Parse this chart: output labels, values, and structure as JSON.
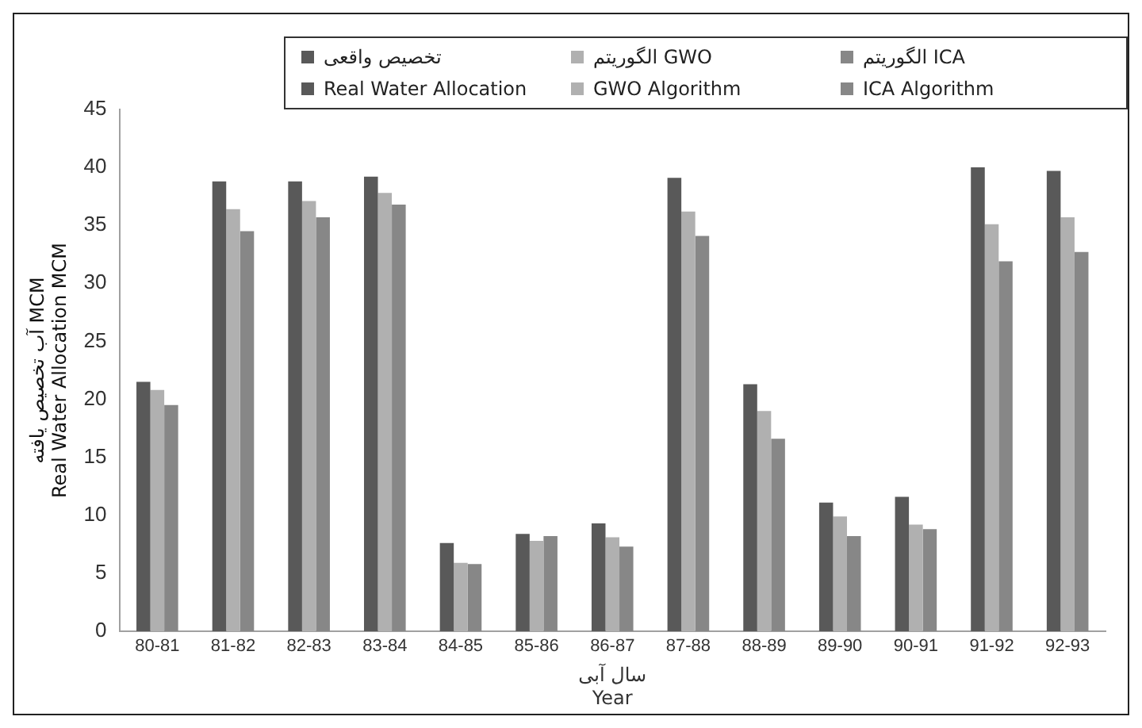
{
  "chart_data": {
    "type": "bar",
    "categories": [
      "80-81",
      "81-82",
      "82-83",
      "83-84",
      "84-85",
      "85-86",
      "86-87",
      "87-88",
      "88-89",
      "89-90",
      "90-91",
      "91-92",
      "92-93"
    ],
    "series": [
      {
        "name": "تخصیص واقعی\nReal Water Allocation",
        "color": "#595959",
        "values": [
          21.5,
          38.8,
          38.8,
          39.2,
          7.6,
          8.4,
          9.3,
          39.1,
          21.3,
          11.1,
          11.6,
          40.0,
          39.7
        ]
      },
      {
        "name": "الگوریتم GWO\nGWO Algorithm",
        "color": "#b0b0b0",
        "values": [
          20.8,
          36.4,
          37.1,
          37.8,
          5.9,
          7.8,
          8.1,
          36.2,
          19.0,
          9.9,
          9.2,
          35.1,
          35.7
        ]
      },
      {
        "name": "الگوریتم ICA\nICA Algorithm",
        "color": "#878787",
        "values": [
          19.5,
          34.5,
          35.7,
          36.8,
          5.8,
          8.2,
          7.3,
          34.1,
          16.6,
          8.2,
          8.8,
          31.9,
          32.7
        ]
      }
    ],
    "xlabel": "سال آبی\nYear",
    "ylabel": "آب تخصیص یافته MCM\nReal Water Allocation MCM",
    "ylim": [
      0,
      45
    ],
    "yticks": [
      0,
      5,
      10,
      15,
      20,
      25,
      30,
      35,
      40,
      45
    ],
    "grid": false,
    "legend": "top"
  }
}
